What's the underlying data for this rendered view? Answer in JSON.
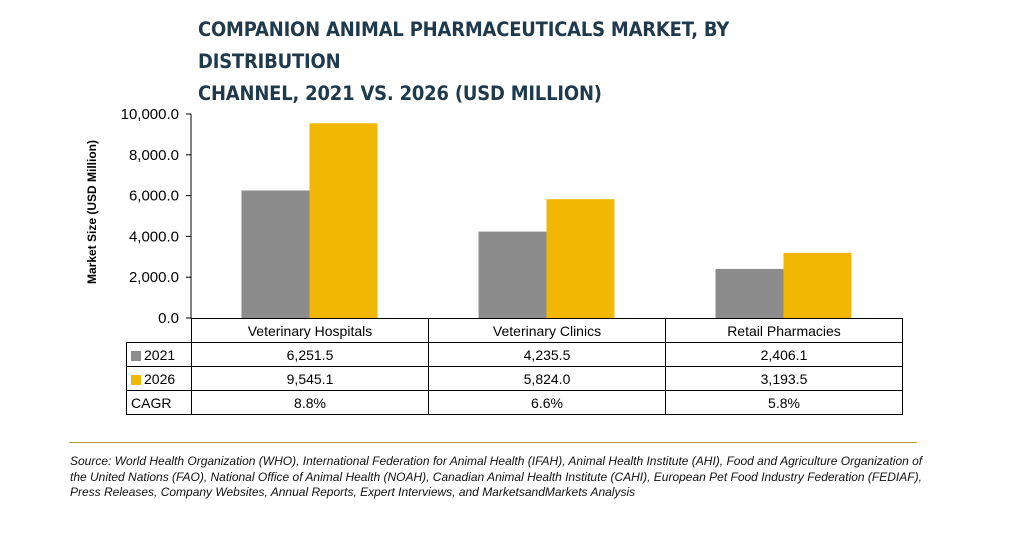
{
  "title_line1": "COMPANION ANIMAL PHARMACEUTICALS MARKET, BY DISTRIBUTION",
  "title_line2": "CHANNEL, 2021 VS. 2026 (USD MILLION)",
  "source": "Source: World Health Organization (WHO), International Federation for Animal Health (IFAH), Animal Health Institute (AHI), Food and Agriculture Organization of the United Nations (FAO), National Office of Animal Health (NOAH), Canadian Animal Health Institute (CAHI), European Pet Food Industry Federation (FEDIAF), Press Releases, Company Websites, Annual Reports, Expert Interviews, and MarketsandMarkets Analysis",
  "table": {
    "cagr_label": "CAGR",
    "cagr": [
      "8.8%",
      "6.6%",
      "5.8%"
    ],
    "rows": [
      {
        "label": "2021",
        "values": [
          "6,251.5",
          "4,235.5",
          "2,406.1"
        ]
      },
      {
        "label": "2026",
        "values": [
          "9,545.1",
          "5,824.0",
          "3,193.5"
        ]
      }
    ]
  },
  "chart_data": {
    "type": "bar",
    "categories": [
      "Veterinary Hospitals",
      "Veterinary Clinics",
      "Retail Pharmacies"
    ],
    "series": [
      {
        "name": "2021",
        "values": [
          6251.5,
          4235.5,
          2406.1
        ],
        "color": "#8c8c8c"
      },
      {
        "name": "2026",
        "values": [
          9545.1,
          5824.0,
          3193.5
        ],
        "color": "#f2b705"
      }
    ],
    "ylabel": "Market Size (USD Million)",
    "ylim": [
      0,
      10000
    ],
    "yticks": [
      "0.0",
      "2,000.0",
      "4,000.0",
      "6,000.0",
      "8,000.0",
      "10,000.0"
    ],
    "ytick_values": [
      0,
      2000,
      4000,
      6000,
      8000,
      10000
    ],
    "grid": false,
    "legend": "data-table"
  }
}
